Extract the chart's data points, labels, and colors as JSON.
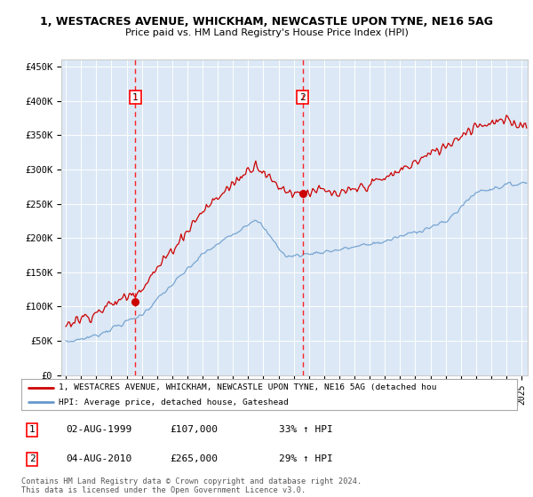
{
  "title1": "1, WESTACRES AVENUE, WHICKHAM, NEWCASTLE UPON TYNE, NE16 5AG",
  "title2": "Price paid vs. HM Land Registry's House Price Index (HPI)",
  "ylim": [
    0,
    460000
  ],
  "xlim_start": 1994.7,
  "xlim_end": 2025.4,
  "plot_bg": "#dce8f5",
  "red_color": "#cc0000",
  "blue_color": "#6699cc",
  "sale1_year": 1999.58,
  "sale1_price": 107000,
  "sale2_year": 2010.58,
  "sale2_price": 265000,
  "legend_line1": "1, WESTACRES AVENUE, WHICKHAM, NEWCASTLE UPON TYNE, NE16 5AG (detached hou",
  "legend_line2": "HPI: Average price, detached house, Gateshead",
  "table_row1": [
    "1",
    "02-AUG-1999",
    "£107,000",
    "33% ↑ HPI"
  ],
  "table_row2": [
    "2",
    "04-AUG-2010",
    "£265,000",
    "29% ↑ HPI"
  ],
  "footer": "Contains HM Land Registry data © Crown copyright and database right 2024.\nThis data is licensed under the Open Government Licence v3.0."
}
